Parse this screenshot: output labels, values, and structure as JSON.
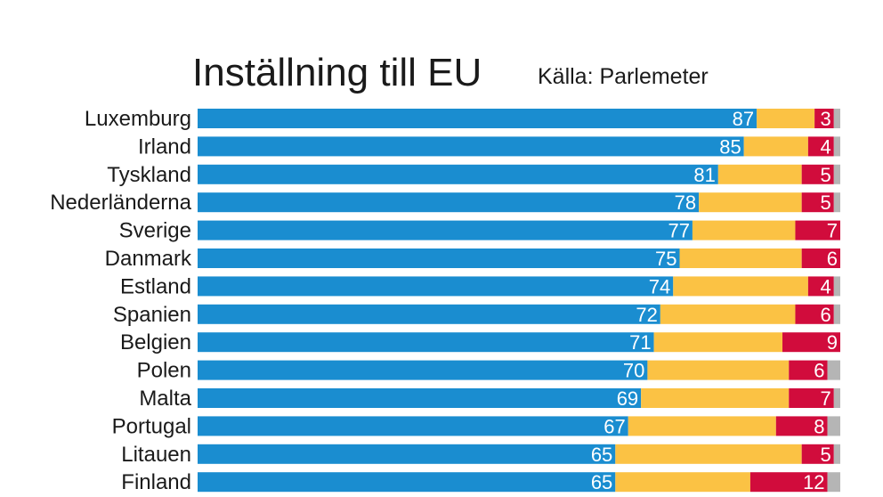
{
  "chart_data": {
    "type": "bar",
    "stacked": true,
    "orientation": "horizontal",
    "title": "Inställning till EU",
    "subtitle": "Källa: Parlemeter",
    "xlim": [
      0,
      100
    ],
    "categories": [
      "Luxemburg",
      "Irland",
      "Tyskland",
      "Nederländerna",
      "Sverige",
      "Danmark",
      "Estland",
      "Spanien",
      "Belgien",
      "Polen",
      "Malta",
      "Portugal",
      "Litauen",
      "Finland"
    ],
    "series": [
      {
        "color": "#1a8dd0",
        "values": [
          87,
          85,
          81,
          78,
          77,
          75,
          74,
          72,
          71,
          70,
          69,
          67,
          65,
          65
        ],
        "labels": [
          "87",
          "85",
          "81",
          "78",
          "77",
          "75",
          "74",
          "72",
          "71",
          "70",
          "69",
          "67",
          "65",
          "65"
        ]
      },
      {
        "color": "#fbc244",
        "values": [
          9,
          10,
          13,
          16,
          16,
          19,
          21,
          21,
          20,
          22,
          23,
          23,
          29,
          21
        ],
        "labels": [
          "",
          "",
          "",
          "",
          "",
          "",
          "",
          "",
          "",
          "",
          "",
          "",
          "",
          ""
        ]
      },
      {
        "color": "#d10c3c",
        "values": [
          3,
          4,
          5,
          5,
          7,
          6,
          4,
          6,
          9,
          6,
          7,
          8,
          5,
          12
        ],
        "labels": [
          "3",
          "4",
          "5",
          "5",
          "7",
          "6",
          "4",
          "6",
          "9",
          "6",
          "7",
          "8",
          "5",
          "12"
        ]
      },
      {
        "color": "#b5b5b5",
        "values": [
          1,
          1,
          1,
          1,
          0,
          0,
          1,
          1,
          0,
          2,
          1,
          2,
          1,
          2
        ],
        "labels": [
          "",
          "",
          "",
          "",
          "",
          "",
          "",
          "",
          "",
          "",
          "",
          "",
          "",
          ""
        ]
      }
    ]
  }
}
